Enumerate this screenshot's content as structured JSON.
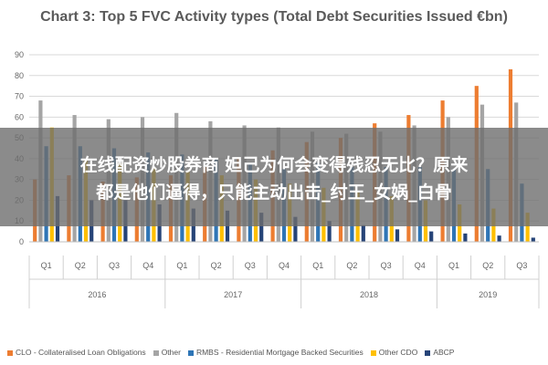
{
  "chart_data": {
    "type": "bar",
    "title": "Chart 3: Top 5 FVC Activity types (Total Debt Securities Issued €bn)",
    "ylim": [
      0,
      90
    ],
    "yticks": [
      0,
      10,
      20,
      30,
      40,
      50,
      60,
      70,
      80,
      90
    ],
    "grid": true,
    "legend_position": "bottom",
    "categories": [
      "Q1",
      "Q2",
      "Q3",
      "Q4",
      "Q1",
      "Q2",
      "Q3",
      "Q4",
      "Q1",
      "Q2",
      "Q3",
      "Q4",
      "Q1",
      "Q2",
      "Q3"
    ],
    "groups": [
      {
        "label": "2016",
        "count": 4
      },
      {
        "label": "2017",
        "count": 4
      },
      {
        "label": "2018",
        "count": 4
      },
      {
        "label": "2019",
        "count": 3
      }
    ],
    "series": [
      {
        "name": "CLO - Collateralised Loan Obligations",
        "color": "#ed7d31",
        "values": [
          30,
          32,
          29,
          31,
          32,
          36,
          40,
          44,
          48,
          50,
          57,
          61,
          68,
          75,
          83
        ]
      },
      {
        "name": "Other",
        "color": "#a5a5a5",
        "values": [
          68,
          61,
          59,
          60,
          62,
          58,
          56,
          55,
          53,
          52,
          53,
          56,
          60,
          66,
          67
        ]
      },
      {
        "name": "RMBS - Residential Mortgage Backed Securities",
        "color": "#2e75b6",
        "values": [
          46,
          46,
          45,
          43,
          42,
          40,
          38,
          35,
          38,
          36,
          36,
          36,
          35,
          35,
          28
        ]
      },
      {
        "name": "Other CDO",
        "color": "#ffc000",
        "values": [
          55,
          40,
          38,
          36,
          34,
          32,
          30,
          28,
          26,
          24,
          22,
          20,
          18,
          16,
          14
        ]
      },
      {
        "name": "ABCP",
        "color": "#264478",
        "values": [
          22,
          20,
          20,
          18,
          16,
          15,
          14,
          12,
          10,
          8,
          6,
          5,
          4,
          3,
          2
        ]
      }
    ]
  },
  "overlay": {
    "line1": "在线配资炒股券商 妲己为何会变得残忍无比？原来",
    "line2": "都是他们逼得，只能主动出击_纣王_女娲_白骨"
  }
}
